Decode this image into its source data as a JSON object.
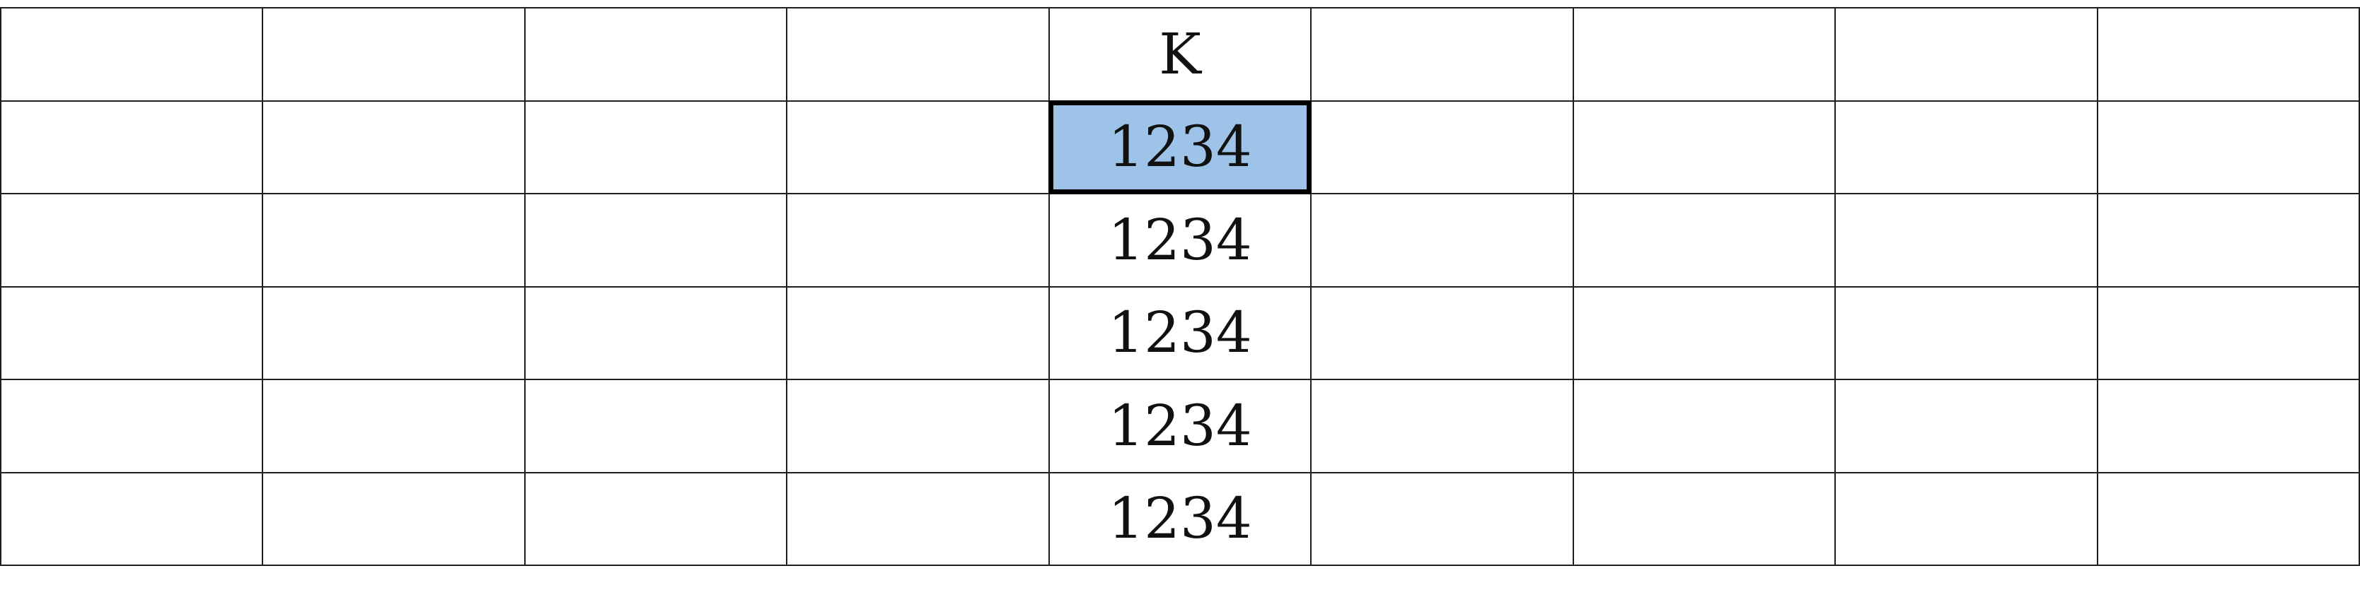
{
  "sheet": {
    "selected_cell": "K2",
    "selection_color": "#9ec3e8",
    "column_count": 9,
    "row_count": 6,
    "rows": [
      [
        "",
        "",
        "",
        "",
        "K",
        "",
        "",
        "",
        ""
      ],
      [
        "",
        "",
        "",
        "",
        "1234",
        "",
        "",
        "",
        ""
      ],
      [
        "",
        "",
        "",
        "",
        "1234",
        "",
        "",
        "",
        ""
      ],
      [
        "",
        "",
        "",
        "",
        "1234",
        "",
        "",
        "",
        ""
      ],
      [
        "",
        "",
        "",
        "",
        "1234",
        "",
        "",
        "",
        ""
      ],
      [
        "",
        "",
        "",
        "",
        "1234",
        "",
        "",
        "",
        ""
      ]
    ]
  }
}
